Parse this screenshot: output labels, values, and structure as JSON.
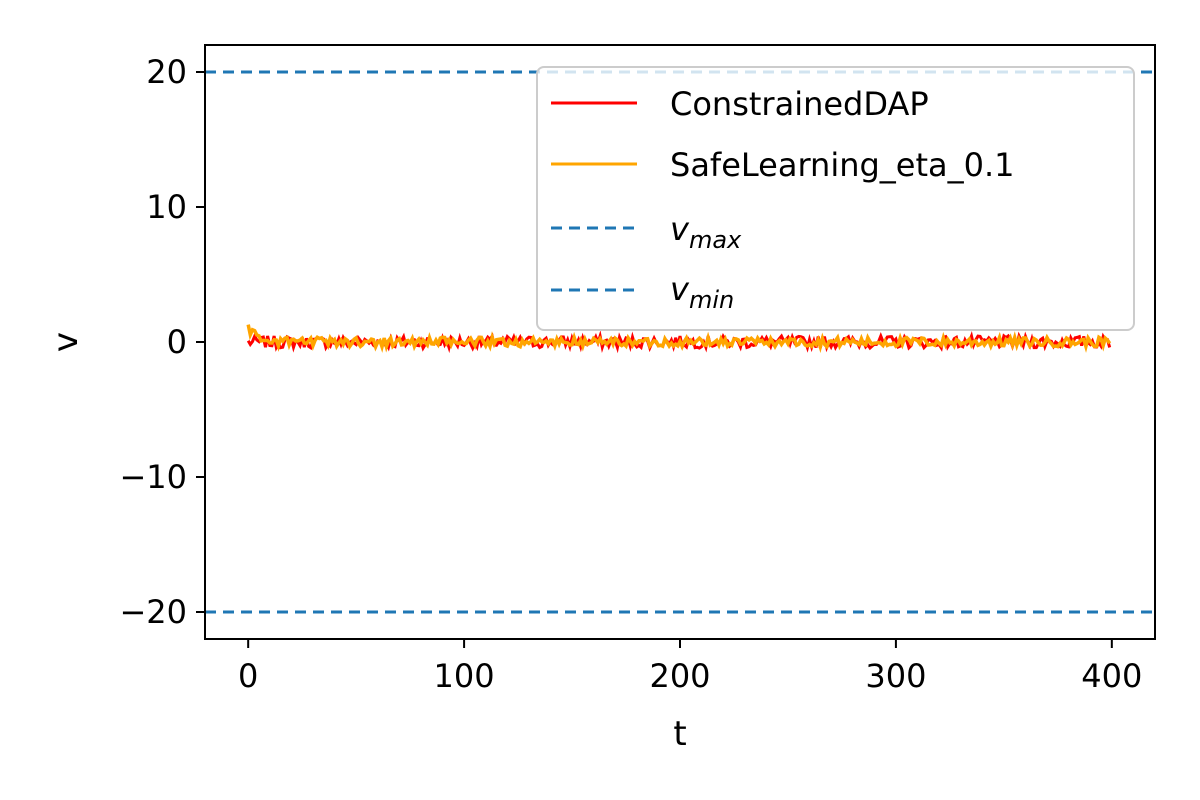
{
  "chart_data": {
    "type": "line",
    "title": "",
    "xlabel": "t",
    "ylabel": "v",
    "xlim": [
      -20,
      420
    ],
    "ylim": [
      -22,
      22
    ],
    "xticks": [
      0,
      100,
      200,
      300,
      400
    ],
    "xtick_labels": [
      "0",
      "100",
      "200",
      "300",
      "400"
    ],
    "yticks": [
      -20,
      -10,
      0,
      10,
      20
    ],
    "ytick_labels": [
      "−20",
      "−10",
      "0",
      "10",
      "20"
    ],
    "grid": false,
    "legend_position": "top-right",
    "legend": {
      "constrained": "ConstrainedDAP",
      "safe": "SafeLearning_eta_0.1",
      "vmax_base": "v",
      "vmax_sub": "max",
      "vmin_base": "v",
      "vmin_sub": "min"
    },
    "series": [
      {
        "name": "ConstrainedDAP",
        "color": "#ff0000",
        "style": "solid",
        "t_start": 0,
        "t_end": 399,
        "mean": 0,
        "noise_amplitude": 0.45
      },
      {
        "name": "SafeLearning_eta_0.1",
        "color": "#ffa500",
        "style": "solid",
        "t_start": 0,
        "t_end": 399,
        "mean": 0,
        "noise_amplitude": 0.35,
        "initial_value": 1.2
      }
    ],
    "hlines": [
      {
        "name": "v_max",
        "y": 20,
        "color": "#1f77b4",
        "style": "dashed"
      },
      {
        "name": "v_min",
        "y": -20,
        "color": "#1f77b4",
        "style": "dashed"
      }
    ]
  }
}
